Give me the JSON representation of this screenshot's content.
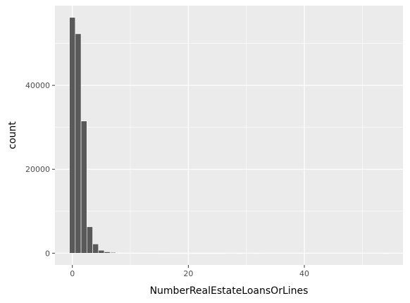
{
  "chart_data": {
    "type": "bar",
    "title": "",
    "xlabel": "NumberRealEstateLoansOrLines",
    "ylabel": "count",
    "x": [
      0,
      1,
      2,
      3,
      4,
      5,
      6,
      7,
      8,
      9,
      10,
      11,
      12,
      13,
      14,
      15,
      16,
      17,
      18,
      19,
      20,
      21,
      22,
      23,
      24,
      25,
      26,
      29,
      32,
      54
    ],
    "values": [
      56200,
      52300,
      31500,
      6300,
      2200,
      700,
      320,
      180,
      90,
      50,
      30,
      20,
      10,
      8,
      6,
      5,
      4,
      3,
      3,
      2,
      2,
      1,
      1,
      1,
      1,
      1,
      1,
      1,
      1,
      1
    ],
    "bin_width": 1,
    "xlim": [
      -3,
      57
    ],
    "ylim": [
      -2800,
      59000
    ],
    "x_ticks": [
      0,
      20,
      40
    ],
    "x_tick_labels": [
      "0",
      "20",
      "40"
    ],
    "y_ticks": [
      0,
      20000,
      40000
    ],
    "y_tick_labels": [
      "0",
      "20000",
      "40000"
    ],
    "grid": true,
    "legend": "none",
    "colors": {
      "panel": "#ebebeb",
      "grid_major": "#ffffff",
      "bar_fill": "#595959",
      "bar_stroke": "#ffffff",
      "tick_text": "#4d4d4d"
    }
  }
}
